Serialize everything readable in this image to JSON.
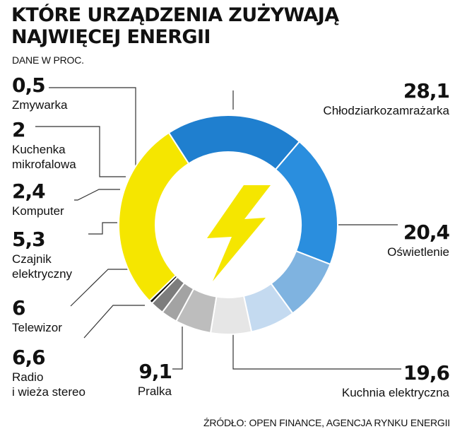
{
  "title_line1": "KTÓRE URZĄDZENIA ZUŻYWAJĄ",
  "title_line2": "NAJWIĘCEJ ENERGII",
  "subtitle": "DANE W PROC.",
  "source": "ŹRÓDŁO: OPEN FINANCE, AGENCJA RYNKU ENERGII",
  "icon": "lightning-bolt-icon",
  "chart_data": {
    "type": "pie",
    "style": "donut",
    "categories": [
      "Chłodziarkozamrażarka",
      "Oświetlenie",
      "Kuchnia elektryczna",
      "Pralka",
      "Radio i wieża stereo",
      "Telewizor",
      "Czajnik elektryczny",
      "Komputer",
      "Kuchenka mikrofalowa",
      "Zmywarka"
    ],
    "values": [
      28.1,
      20.4,
      19.6,
      9.1,
      6.6,
      6,
      5.3,
      2.4,
      2,
      0.5
    ],
    "value_labels": [
      "28,1",
      "20,4",
      "19,6",
      "9,1",
      "6,6",
      "6",
      "5,3",
      "2,4",
      "2",
      "0,5"
    ],
    "label_lines": [
      [
        "Chłodziarkozamrażarka"
      ],
      [
        "Oświetlenie"
      ],
      [
        "Kuchnia elektryczna"
      ],
      [
        "Pralka"
      ],
      [
        "Radio",
        "i wieża stereo"
      ],
      [
        "Telewizor"
      ],
      [
        "Czajnik",
        "elektryczny"
      ],
      [
        "Komputer"
      ],
      [
        "Kuchenka",
        "mikrofalowa"
      ],
      [
        "Zmywarka"
      ]
    ],
    "colors": [
      "#f5e600",
      "#1f7fcf",
      "#2a8ede",
      "#7fb3e0",
      "#c4daf0",
      "#e6e6e6",
      "#bdbdbd",
      "#a3a3a3",
      "#7d7d7d",
      "#111111"
    ]
  }
}
